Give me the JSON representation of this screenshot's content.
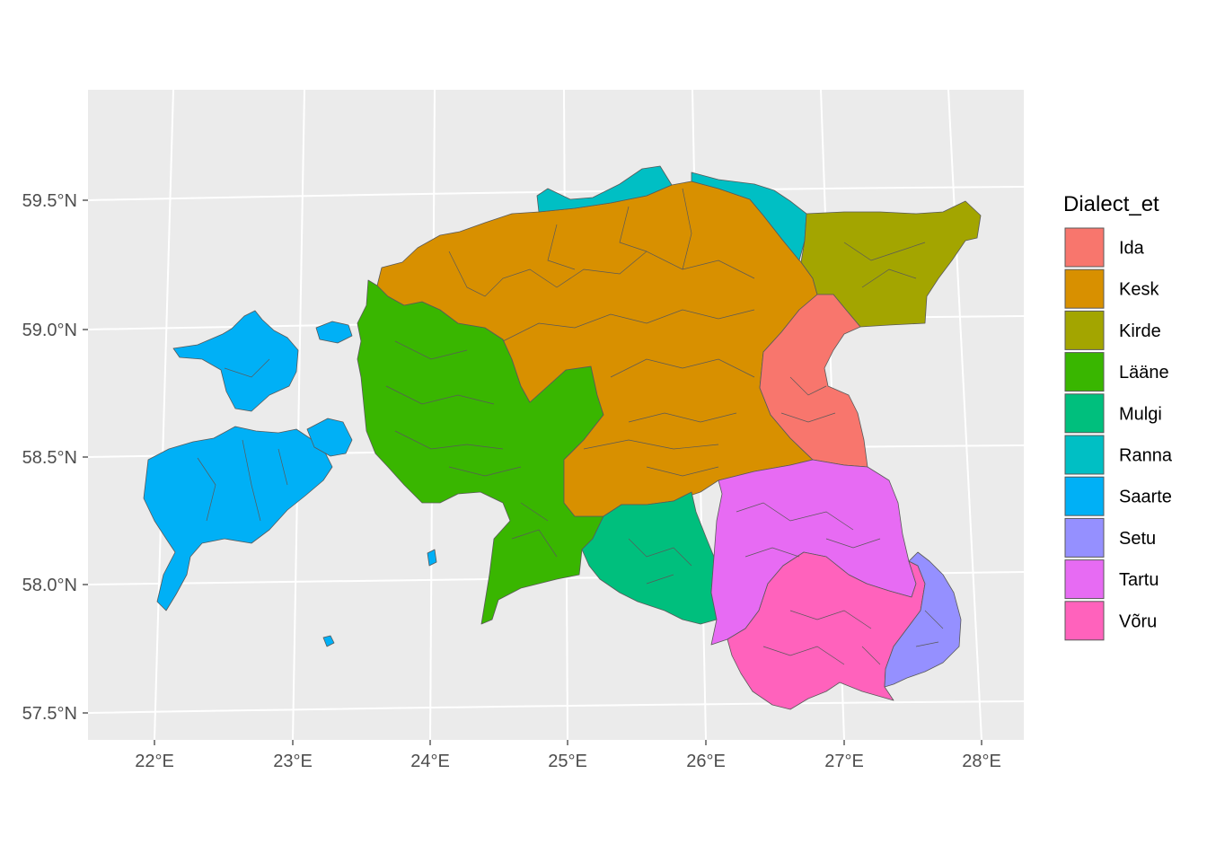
{
  "map": {
    "y_ticks": [
      "59.5°N",
      "59.0°N",
      "58.5°N",
      "58.0°N",
      "57.5°N"
    ],
    "x_ticks": [
      "22°E",
      "23°E",
      "24°E",
      "25°E",
      "26°E",
      "27°E",
      "28°E"
    ]
  },
  "legend": {
    "title": "Dialect_et",
    "items": [
      {
        "label": "Ida",
        "color": "#F8766D"
      },
      {
        "label": "Kesk",
        "color": "#D89000"
      },
      {
        "label": "Kirde",
        "color": "#A3A500"
      },
      {
        "label": "Lääne",
        "color": "#39B600"
      },
      {
        "label": "Mulgi",
        "color": "#00BF7D"
      },
      {
        "label": "Ranna",
        "color": "#00BFC4"
      },
      {
        "label": "Saarte",
        "color": "#00B0F6"
      },
      {
        "label": "Setu",
        "color": "#9590FF"
      },
      {
        "label": "Tartu",
        "color": "#E76BF3"
      },
      {
        "label": "Võru",
        "color": "#FF62BC"
      }
    ]
  },
  "colors": {
    "panel_background": "#EBEBEB",
    "gridline": "#FFFFFF",
    "region_border": "#595959"
  }
}
